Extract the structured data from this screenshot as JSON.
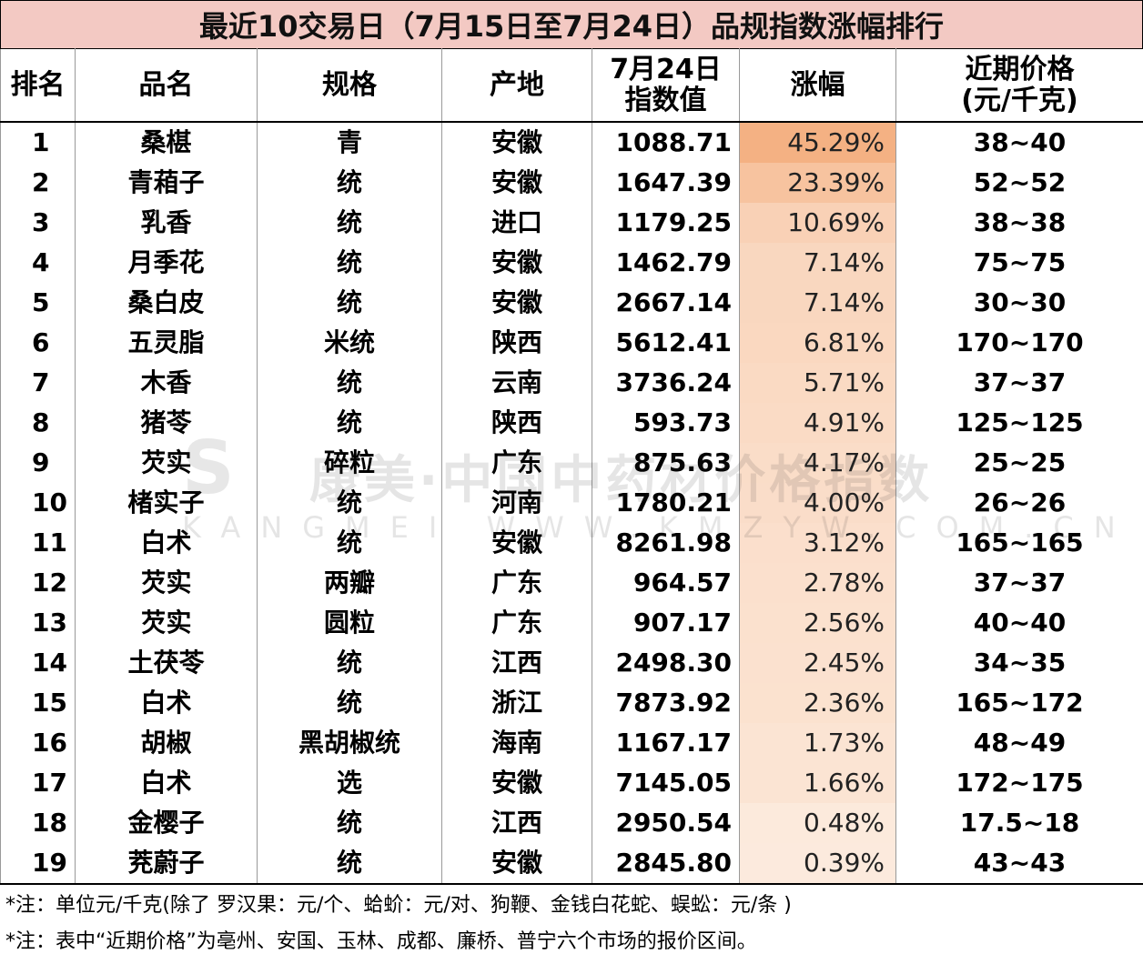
{
  "title": "最近10交易日（7月15日至7月24日）品规指数涨幅排行",
  "headers": {
    "rank": "排名",
    "name": "品名",
    "spec": "规格",
    "origin": "产地",
    "index_line1": "7月24日",
    "index_line2": "指数值",
    "change": "涨幅",
    "price_line1": "近期价格",
    "price_line2": "(元/千克)"
  },
  "rows": [
    {
      "rank": "1",
      "name": "桑椹",
      "spec": "青",
      "origin": "安徽",
      "index": "1088.71",
      "change": "45.29%",
      "change_pct": 45.29,
      "price": "38~40"
    },
    {
      "rank": "2",
      "name": "青葙子",
      "spec": "统",
      "origin": "安徽",
      "index": "1647.39",
      "change": "23.39%",
      "change_pct": 23.39,
      "price": "52~52"
    },
    {
      "rank": "3",
      "name": "乳香",
      "spec": "统",
      "origin": "进口",
      "index": "1179.25",
      "change": "10.69%",
      "change_pct": 10.69,
      "price": "38~38"
    },
    {
      "rank": "4",
      "name": "月季花",
      "spec": "统",
      "origin": "安徽",
      "index": "1462.79",
      "change": "7.14%",
      "change_pct": 7.14,
      "price": "75~75"
    },
    {
      "rank": "5",
      "name": "桑白皮",
      "spec": "统",
      "origin": "安徽",
      "index": "2667.14",
      "change": "7.14%",
      "change_pct": 7.14,
      "price": "30~30"
    },
    {
      "rank": "6",
      "name": "五灵脂",
      "spec": "米统",
      "origin": "陕西",
      "index": "5612.41",
      "change": "6.81%",
      "change_pct": 6.81,
      "price": "170~170"
    },
    {
      "rank": "7",
      "name": "木香",
      "spec": "统",
      "origin": "云南",
      "index": "3736.24",
      "change": "5.71%",
      "change_pct": 5.71,
      "price": "37~37"
    },
    {
      "rank": "8",
      "name": "猪苓",
      "spec": "统",
      "origin": "陕西",
      "index": "593.73",
      "change": "4.91%",
      "change_pct": 4.91,
      "price": "125~125"
    },
    {
      "rank": "9",
      "name": "芡实",
      "spec": "碎粒",
      "origin": "广东",
      "index": "875.63",
      "change": "4.17%",
      "change_pct": 4.17,
      "price": "25~25"
    },
    {
      "rank": "10",
      "name": "楮实子",
      "spec": "统",
      "origin": "河南",
      "index": "1780.21",
      "change": "4.00%",
      "change_pct": 4.0,
      "price": "26~26"
    },
    {
      "rank": "11",
      "name": "白术",
      "spec": "统",
      "origin": "安徽",
      "index": "8261.98",
      "change": "3.12%",
      "change_pct": 3.12,
      "price": "165~165"
    },
    {
      "rank": "12",
      "name": "芡实",
      "spec": "两瓣",
      "origin": "广东",
      "index": "964.57",
      "change": "2.78%",
      "change_pct": 2.78,
      "price": "37~37"
    },
    {
      "rank": "13",
      "name": "芡实",
      "spec": "圆粒",
      "origin": "广东",
      "index": "907.17",
      "change": "2.56%",
      "change_pct": 2.56,
      "price": "40~40"
    },
    {
      "rank": "14",
      "name": "土茯苓",
      "spec": "统",
      "origin": "江西",
      "index": "2498.30",
      "change": "2.45%",
      "change_pct": 2.45,
      "price": "34~35"
    },
    {
      "rank": "15",
      "name": "白术",
      "spec": "统",
      "origin": "浙江",
      "index": "7873.92",
      "change": "2.36%",
      "change_pct": 2.36,
      "price": "165~172"
    },
    {
      "rank": "16",
      "name": "胡椒",
      "spec": "黑胡椒统",
      "origin": "海南",
      "index": "1167.17",
      "change": "1.73%",
      "change_pct": 1.73,
      "price": "48~49"
    },
    {
      "rank": "17",
      "name": "白术",
      "spec": "选",
      "origin": "安徽",
      "index": "7145.05",
      "change": "1.66%",
      "change_pct": 1.66,
      "price": "172~175"
    },
    {
      "rank": "18",
      "name": "金樱子",
      "spec": "统",
      "origin": "江西",
      "index": "2950.54",
      "change": "0.48%",
      "change_pct": 0.48,
      "price": "17.5~18"
    },
    {
      "rank": "19",
      "name": "茺蔚子",
      "spec": "统",
      "origin": "安徽",
      "index": "2845.80",
      "change": "0.39%",
      "change_pct": 0.39,
      "price": "43~43"
    }
  ],
  "notes": [
    "*注：单位元/千克(除了 罗汉果：元/个、蛤蚧：元/对、狗鞭、金钱白花蛇、蜈蚣：元/条 )",
    "*注：表中“近期价格”为亳州、安国、玉林、成都、廉桥、普宁六个市场的报价区间。"
  ],
  "watermark": {
    "line1": "康美·中国中药材价格指数",
    "line2": "KANGMEI WWW.KMZYW.COM.CN"
  },
  "colors": {
    "title_bg": "#f3c9c3",
    "heat_max": "#f4b183",
    "heat_min": "#fdf0e6"
  }
}
